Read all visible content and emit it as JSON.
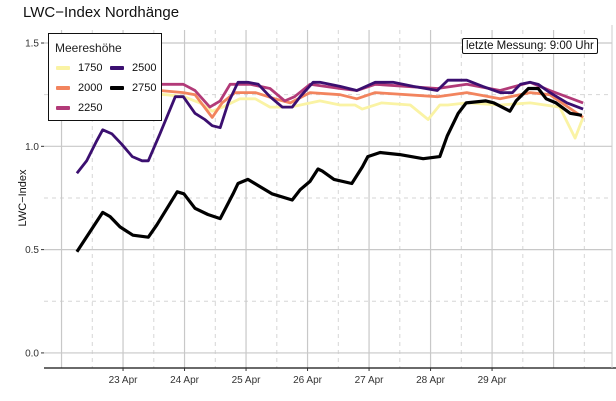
{
  "chart_data": {
    "type": "line",
    "title": "LWC−Index Nordhänge",
    "xlabel": "",
    "ylabel": "LWC−Index",
    "x_unit": "days since 23 Apr 00:00",
    "xlim": [
      -1.285,
      7.95
    ],
    "ylim": [
      -0.073,
      1.563
    ],
    "x_ticks": [
      {
        "value": 0,
        "label": "23 Apr"
      },
      {
        "value": 1,
        "label": "24 Apr"
      },
      {
        "value": 2,
        "label": "25 Apr"
      },
      {
        "value": 3,
        "label": "26 Apr"
      },
      {
        "value": 4,
        "label": "27 Apr"
      },
      {
        "value": 5,
        "label": "28 Apr"
      },
      {
        "value": 6,
        "label": "29 Apr"
      }
    ],
    "y_ticks": [
      {
        "value": 0,
        "label": "0.0"
      },
      {
        "value": 0.5,
        "label": "0.5"
      },
      {
        "value": 1.0,
        "label": "1.0"
      },
      {
        "value": 1.5,
        "label": "1.5"
      }
    ],
    "grid": true,
    "legend": {
      "title": "Meereshöhe",
      "placement": "top-left"
    },
    "annotation": "letzte Messung: 9:00 Uhr",
    "series": [
      {
        "name": "1750",
        "color": "#faf3a4",
        "points": [
          [
            -0.75,
            1.26
          ],
          [
            0.0,
            1.26
          ],
          [
            0.7,
            1.25
          ],
          [
            0.99,
            1.24
          ],
          [
            1.25,
            1.21
          ],
          [
            1.45,
            1.17
          ],
          [
            1.62,
            1.19
          ],
          [
            1.9,
            1.23
          ],
          [
            2.15,
            1.23
          ],
          [
            2.39,
            1.19
          ],
          [
            2.72,
            1.19
          ],
          [
            3.2,
            1.22
          ],
          [
            3.53,
            1.2
          ],
          [
            3.77,
            1.2
          ],
          [
            3.89,
            1.18
          ],
          [
            4.2,
            1.21
          ],
          [
            4.67,
            1.2
          ],
          [
            4.96,
            1.13
          ],
          [
            5.15,
            1.2
          ],
          [
            5.28,
            1.2
          ],
          [
            5.59,
            1.21
          ],
          [
            6.13,
            1.2
          ],
          [
            6.62,
            1.21
          ],
          [
            7.1,
            1.19
          ],
          [
            7.35,
            1.04
          ],
          [
            7.48,
            1.14
          ]
        ]
      },
      {
        "name": "2000",
        "color": "#f2845e",
        "points": [
          [
            -0.75,
            1.27
          ],
          [
            0.0,
            1.27
          ],
          [
            0.6,
            1.27
          ],
          [
            0.98,
            1.26
          ],
          [
            1.17,
            1.25
          ],
          [
            1.45,
            1.14
          ],
          [
            1.61,
            1.21
          ],
          [
            1.82,
            1.26
          ],
          [
            2.15,
            1.26
          ],
          [
            2.47,
            1.23
          ],
          [
            2.72,
            1.21
          ],
          [
            3.04,
            1.26
          ],
          [
            3.53,
            1.25
          ],
          [
            3.8,
            1.23
          ],
          [
            4.1,
            1.26
          ],
          [
            5.11,
            1.24
          ],
          [
            5.59,
            1.26
          ],
          [
            6.13,
            1.23
          ],
          [
            6.62,
            1.26
          ],
          [
            6.94,
            1.25
          ],
          [
            7.48,
            1.14
          ]
        ]
      },
      {
        "name": "2250",
        "color": "#b23a78",
        "points": [
          [
            -0.75,
            1.3
          ],
          [
            0.0,
            1.3
          ],
          [
            0.6,
            1.3
          ],
          [
            0.98,
            1.3
          ],
          [
            1.17,
            1.27
          ],
          [
            1.41,
            1.19
          ],
          [
            1.58,
            1.22
          ],
          [
            1.74,
            1.3
          ],
          [
            2.07,
            1.3
          ],
          [
            2.39,
            1.28
          ],
          [
            2.63,
            1.22
          ],
          [
            2.79,
            1.24
          ],
          [
            3.04,
            1.3
          ],
          [
            3.53,
            1.28
          ],
          [
            3.8,
            1.27
          ],
          [
            4.1,
            1.3
          ],
          [
            5.11,
            1.28
          ],
          [
            5.59,
            1.3
          ],
          [
            6.13,
            1.27
          ],
          [
            6.62,
            1.31
          ],
          [
            6.94,
            1.27
          ],
          [
            7.48,
            1.21
          ]
        ]
      },
      {
        "name": "2500",
        "color": "#3b0f70",
        "points": [
          [
            -0.75,
            0.87
          ],
          [
            -0.59,
            0.93
          ],
          [
            -0.44,
            1.02
          ],
          [
            -0.33,
            1.08
          ],
          [
            -0.18,
            1.06
          ],
          [
            -0.02,
            1.01
          ],
          [
            0.15,
            0.95
          ],
          [
            0.31,
            0.93
          ],
          [
            0.41,
            0.93
          ],
          [
            0.6,
            1.06
          ],
          [
            0.85,
            1.24
          ],
          [
            0.98,
            1.24
          ],
          [
            1.17,
            1.16
          ],
          [
            1.33,
            1.13
          ],
          [
            1.45,
            1.1
          ],
          [
            1.58,
            1.09
          ],
          [
            1.71,
            1.21
          ],
          [
            1.87,
            1.31
          ],
          [
            2.03,
            1.31
          ],
          [
            2.2,
            1.3
          ],
          [
            2.39,
            1.24
          ],
          [
            2.59,
            1.19
          ],
          [
            2.75,
            1.19
          ],
          [
            2.88,
            1.24
          ],
          [
            3.09,
            1.31
          ],
          [
            3.2,
            1.31
          ],
          [
            3.53,
            1.29
          ],
          [
            3.8,
            1.27
          ],
          [
            4.1,
            1.31
          ],
          [
            4.39,
            1.31
          ],
          [
            4.72,
            1.29
          ],
          [
            5.11,
            1.27
          ],
          [
            5.28,
            1.32
          ],
          [
            5.59,
            1.32
          ],
          [
            5.85,
            1.29
          ],
          [
            6.13,
            1.26
          ],
          [
            6.33,
            1.26
          ],
          [
            6.46,
            1.3
          ],
          [
            6.62,
            1.31
          ],
          [
            6.75,
            1.3
          ],
          [
            6.94,
            1.26
          ],
          [
            7.22,
            1.21
          ],
          [
            7.48,
            1.18
          ]
        ]
      },
      {
        "name": "2750",
        "color": "#000000",
        "points": [
          [
            -0.75,
            0.49
          ],
          [
            -0.33,
            0.68
          ],
          [
            -0.21,
            0.66
          ],
          [
            -0.05,
            0.61
          ],
          [
            0.16,
            0.57
          ],
          [
            0.41,
            0.56
          ],
          [
            0.55,
            0.62
          ],
          [
            0.88,
            0.78
          ],
          [
            0.99,
            0.77
          ],
          [
            1.17,
            0.7
          ],
          [
            1.38,
            0.67
          ],
          [
            1.58,
            0.65
          ],
          [
            1.79,
            0.77
          ],
          [
            1.87,
            0.82
          ],
          [
            2.03,
            0.84
          ],
          [
            2.2,
            0.81
          ],
          [
            2.42,
            0.77
          ],
          [
            2.75,
            0.74
          ],
          [
            2.88,
            0.79
          ],
          [
            3.04,
            0.83
          ],
          [
            3.17,
            0.89
          ],
          [
            3.24,
            0.88
          ],
          [
            3.43,
            0.84
          ],
          [
            3.72,
            0.82
          ],
          [
            3.89,
            0.9
          ],
          [
            3.98,
            0.95
          ],
          [
            4.18,
            0.97
          ],
          [
            4.5,
            0.96
          ],
          [
            4.88,
            0.94
          ],
          [
            5.15,
            0.95
          ],
          [
            5.27,
            1.05
          ],
          [
            5.45,
            1.16
          ],
          [
            5.58,
            1.21
          ],
          [
            5.9,
            1.22
          ],
          [
            6.03,
            1.21
          ],
          [
            6.29,
            1.17
          ],
          [
            6.39,
            1.22
          ],
          [
            6.59,
            1.28
          ],
          [
            6.75,
            1.28
          ],
          [
            6.88,
            1.23
          ],
          [
            7.04,
            1.21
          ],
          [
            7.27,
            1.16
          ],
          [
            7.46,
            1.15
          ]
        ]
      }
    ]
  }
}
